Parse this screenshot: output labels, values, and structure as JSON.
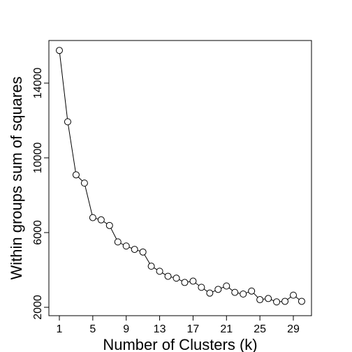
{
  "chart_data": {
    "type": "line",
    "title": "",
    "xlabel": "Number of Clusters (k)",
    "ylabel": "Within groups sum of squares",
    "x_ticks": [
      1,
      5,
      9,
      13,
      17,
      21,
      25,
      29
    ],
    "y_ticks": [
      2000,
      6000,
      10000,
      14000
    ],
    "xlim": [
      1,
      30
    ],
    "ylim": [
      2000,
      15700
    ],
    "grid": false,
    "legend": "none",
    "marker": "open-circle",
    "line_color": "#000000",
    "series": [
      {
        "x": [
          1,
          2,
          3,
          4,
          5,
          6,
          7,
          8,
          9,
          10,
          11,
          12,
          13,
          14,
          15,
          16,
          17,
          18,
          19,
          20,
          21,
          22,
          23,
          24,
          25,
          26,
          27,
          28,
          29,
          30
        ],
        "values": [
          15750,
          11930,
          9090,
          8650,
          6800,
          6680,
          6380,
          5500,
          5280,
          5100,
          4960,
          4200,
          3930,
          3660,
          3560,
          3330,
          3400,
          3070,
          2760,
          2960,
          3140,
          2800,
          2710,
          2870,
          2410,
          2470,
          2290,
          2320,
          2650,
          2320
        ]
      }
    ]
  }
}
